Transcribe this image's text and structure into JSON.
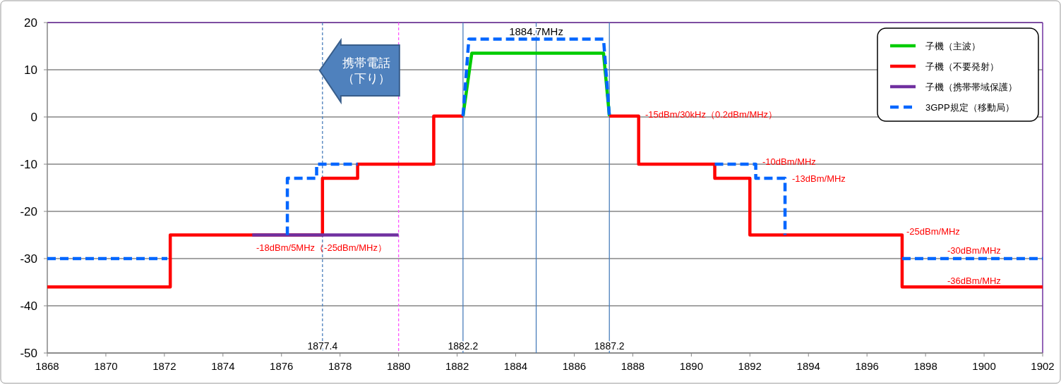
{
  "chart_data": {
    "type": "line",
    "xlim": [
      1868,
      1902
    ],
    "xticks": [
      1868,
      1870,
      1872,
      1874,
      1876,
      1878,
      1880,
      1882,
      1884,
      1886,
      1888,
      1890,
      1892,
      1894,
      1896,
      1898,
      1900,
      1902
    ],
    "ylim": [
      -50,
      20
    ],
    "yticks": [
      -50,
      -40,
      -30,
      -20,
      -10,
      0,
      10,
      20
    ],
    "grid": "y",
    "legend": "top right",
    "series": [
      {
        "name": "子機（主波）",
        "color": "#00cc00",
        "line_style": "solid",
        "x": [
          1882.2,
          1882.5,
          1887,
          1887.2
        ],
        "values": [
          0.2,
          13.5,
          13.5,
          0.2
        ]
      },
      {
        "name": "子機（不要発射）",
        "color": "#ff0000",
        "line_style": "solid",
        "x": [
          1868,
          1872.2,
          1872.2,
          1877.4,
          1877.4,
          1878.6,
          1878.6,
          1881.2,
          1881.2,
          1882.2
        ],
        "values": [
          -36,
          -36,
          -25,
          -25,
          -13,
          -13,
          -10,
          -10,
          0.2,
          0.2
        ]
      },
      {
        "color": "#ff0000",
        "line_style": "solid",
        "x": [
          1887.2,
          1888.2,
          1888.2,
          1890.8,
          1890.8,
          1892,
          1892,
          1897.2,
          1897.2,
          1902
        ],
        "values": [
          0.2,
          0.2,
          -10,
          -10,
          -13,
          -13,
          -25,
          -25,
          -36,
          -36
        ]
      },
      {
        "name": "子機（携帯帯域保護）",
        "color": "#7030a0",
        "line_style": "solid",
        "x": [
          1875,
          1880
        ],
        "values": [
          -25,
          -25
        ]
      },
      {
        "name": "3GPP規定（移動局）",
        "color": "#0066ff",
        "line_style": "dashed",
        "x": [
          1868,
          1872.1
        ],
        "values": [
          -30,
          -30
        ]
      },
      {
        "color": "#0066ff",
        "line_style": "dashed",
        "x": [
          1876.2,
          1876.2,
          1877.2,
          1877.2,
          1878.6
        ],
        "values": [
          -25,
          -13,
          -13,
          -10,
          -10
        ]
      },
      {
        "color": "#0066ff",
        "line_style": "dashed",
        "x": [
          1882.2,
          1882.4,
          1887,
          1887.2
        ],
        "values": [
          0.2,
          16.5,
          16.5,
          0.2
        ]
      },
      {
        "color": "#0066ff",
        "line_style": "dashed",
        "x": [
          1890.8,
          1892.2,
          1892.2,
          1893.2,
          1893.2
        ],
        "values": [
          -10,
          -10,
          -13,
          -13,
          -25
        ]
      },
      {
        "color": "#0066ff",
        "line_style": "dashed",
        "x": [
          1897.2,
          1902
        ],
        "values": [
          -30,
          -30
        ]
      }
    ],
    "ref_lines": [
      {
        "axis": "x",
        "value": 1877.4,
        "label": "1877.4",
        "color": "#4a7ebb",
        "line_style": "dashed"
      },
      {
        "axis": "x",
        "value": 1880,
        "label": null,
        "color": "#ff55ff",
        "line_style": "dashed"
      },
      {
        "axis": "x",
        "value": 1882.2,
        "label": "1882.2",
        "color": "#4a7ebb",
        "line_style": "solid"
      },
      {
        "axis": "x",
        "value": 1884.7,
        "label": null,
        "color": "#4a7ebb",
        "line_style": "solid"
      },
      {
        "axis": "x",
        "value": 1887.2,
        "label": "1887.2",
        "color": "#4a7ebb",
        "line_style": "solid"
      }
    ],
    "annotations": [
      {
        "text": "携帯電話（下り）",
        "x": 1877.4,
        "y": 10
      },
      {
        "text": "1884.7MHz",
        "x": 1884.7,
        "y": 20
      },
      "-18dBm/5MHz（-25dBm/MHz）",
      "-15dBm/30kHz（0.2dBm/MHz）",
      "-10dBm/MHz",
      "-13dBm/MHz",
      "-25dBm/MHz",
      "-30dBm/MHz",
      "-36dBm/MHz"
    ]
  }
}
